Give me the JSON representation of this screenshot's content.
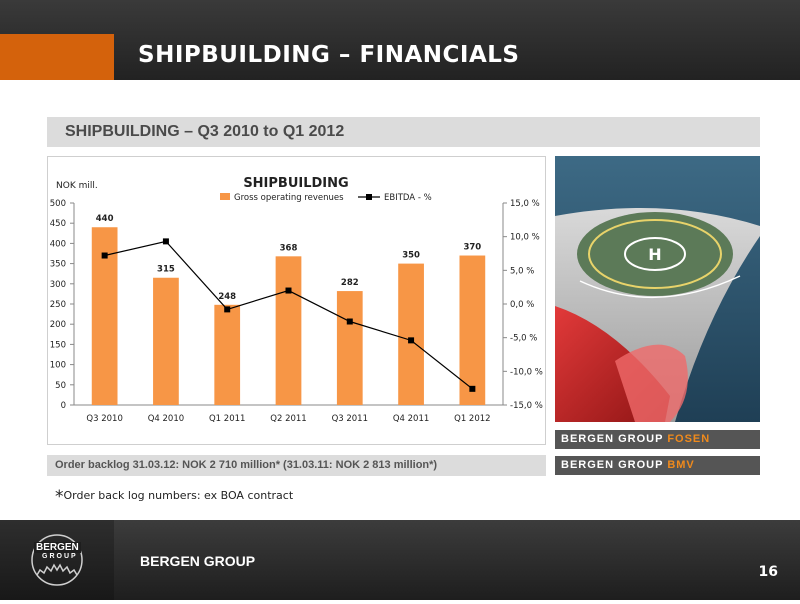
{
  "header": {
    "title": "SHIPBUILDING – FINANCIALS"
  },
  "subtitle": "SHIPBUILDING – Q3 2010 to Q1 2012",
  "chart_data": {
    "type": "bar",
    "title": "SHIPBUILDING",
    "ylabel": "NOK mill.",
    "categories": [
      "Q3 2010",
      "Q4 2010",
      "Q1 2011",
      "Q2 2011",
      "Q3 2011",
      "Q4 2011",
      "Q1 2012"
    ],
    "series": [
      {
        "name": "Gross operating revenues",
        "type": "bar",
        "axis": "left",
        "values": [
          440,
          315,
          248,
          368,
          282,
          350,
          370
        ],
        "color": "#f79646"
      },
      {
        "name": "EBITDA - %",
        "type": "line",
        "axis": "right",
        "values": [
          7.2,
          9.3,
          -0.8,
          2.0,
          -2.6,
          -5.4,
          -12.6
        ],
        "color": "#000000"
      }
    ],
    "bar_labels": [
      "440",
      "315",
      "248",
      "368",
      "282",
      "350",
      "370"
    ],
    "ylim": [
      0,
      500
    ],
    "yticks": [
      "500",
      "450",
      "400",
      "350",
      "300",
      "250",
      "200",
      "150",
      "100",
      "50",
      "0"
    ],
    "y2lim": [
      -15,
      15
    ],
    "y2ticks": [
      "15,0 %",
      "10,0 %",
      "5,0 %",
      "0,0 %",
      "-5,0 %",
      "-10,0 %",
      "-15,0 %"
    ],
    "legend": "top",
    "grid": false
  },
  "brand_labels": {
    "fosen": {
      "white": "BERGEN GROUP ",
      "orange": "FOSEN"
    },
    "bmv": {
      "white": "BERGEN GROUP ",
      "orange": "BMV"
    }
  },
  "backlog": "Order backlog 31.03.12: NOK  2 710 million* (31.03.11: NOK 2 813 million*)",
  "footnote": {
    "star": "*",
    "text": "Order back log numbers:  ex BOA contract"
  },
  "footer": {
    "logo_top": "BERGEN",
    "logo_bottom": "GROUP",
    "brand": "BERGEN GROUP",
    "page": "16"
  },
  "colors": {
    "accent": "#d4620c",
    "bar": "#f79646",
    "dark": "#2a2a2a",
    "brand_orange": "#f08a1c"
  }
}
